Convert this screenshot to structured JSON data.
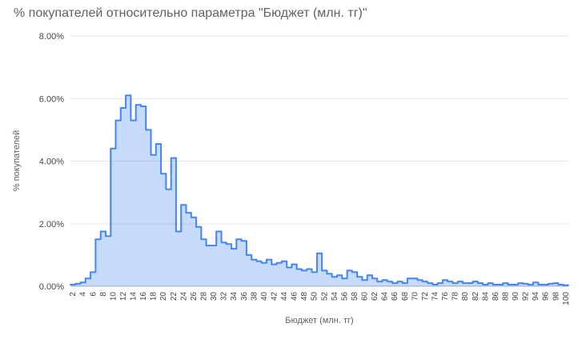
{
  "chart_data": {
    "type": "area",
    "subtype": "stepped-area-histogram",
    "title": "% покупателей относительно параметра \"Бюджет (млн. тг)\"",
    "xlabel": "Бюджет (млн. тг)",
    "ylabel": "% покупателей",
    "value_unit": "%",
    "ylim": [
      0,
      8
    ],
    "xlim": [
      1.5,
      100.5
    ],
    "grid": true,
    "legend": "none",
    "series_color": "#4285f4",
    "area_fill": "rgba(66,133,244,0.3)",
    "y_ticks": [
      {
        "value": 0,
        "label": "0.00%"
      },
      {
        "value": 2,
        "label": "2.00%"
      },
      {
        "value": 4,
        "label": "4.00%"
      },
      {
        "value": 6,
        "label": "6.00%"
      },
      {
        "value": 8,
        "label": "8.00%"
      }
    ],
    "x_ticks": [
      2,
      4,
      6,
      8,
      10,
      12,
      14,
      16,
      18,
      20,
      22,
      24,
      26,
      28,
      30,
      32,
      34,
      36,
      38,
      40,
      42,
      44,
      46,
      48,
      50,
      52,
      54,
      56,
      58,
      60,
      62,
      64,
      66,
      68,
      70,
      72,
      74,
      76,
      78,
      80,
      82,
      84,
      86,
      88,
      90,
      92,
      94,
      96,
      98,
      100
    ],
    "x": [
      2,
      3,
      4,
      5,
      6,
      7,
      8,
      9,
      10,
      11,
      12,
      13,
      14,
      15,
      16,
      17,
      18,
      19,
      20,
      21,
      22,
      23,
      24,
      25,
      26,
      27,
      28,
      29,
      30,
      31,
      32,
      33,
      34,
      35,
      36,
      37,
      38,
      39,
      40,
      41,
      42,
      43,
      44,
      45,
      46,
      47,
      48,
      49,
      50,
      51,
      52,
      53,
      54,
      55,
      56,
      57,
      58,
      59,
      60,
      61,
      62,
      63,
      64,
      65,
      66,
      67,
      68,
      69,
      70,
      71,
      72,
      73,
      74,
      75,
      76,
      77,
      78,
      79,
      80,
      81,
      82,
      83,
      84,
      85,
      86,
      87,
      88,
      89,
      90,
      91,
      92,
      93,
      94,
      95,
      96,
      97,
      98,
      99,
      100
    ],
    "values": [
      0.05,
      0.08,
      0.12,
      0.25,
      0.45,
      1.5,
      1.75,
      1.6,
      4.4,
      5.3,
      5.7,
      6.1,
      5.3,
      5.8,
      5.75,
      5.0,
      4.2,
      4.55,
      3.6,
      3.1,
      4.1,
      1.75,
      2.6,
      2.35,
      2.2,
      1.9,
      1.5,
      1.3,
      1.3,
      1.75,
      1.4,
      1.35,
      1.2,
      1.5,
      1.45,
      1.0,
      0.85,
      0.8,
      0.75,
      0.85,
      0.7,
      0.75,
      0.8,
      0.6,
      0.7,
      0.55,
      0.5,
      0.55,
      0.45,
      1.05,
      0.5,
      0.4,
      0.3,
      0.35,
      0.25,
      0.5,
      0.45,
      0.3,
      0.2,
      0.35,
      0.25,
      0.15,
      0.2,
      0.15,
      0.1,
      0.15,
      0.1,
      0.25,
      0.25,
      0.2,
      0.15,
      0.1,
      0.05,
      0.1,
      0.2,
      0.15,
      0.1,
      0.15,
      0.1,
      0.1,
      0.15,
      0.1,
      0.05,
      0.1,
      0.05,
      0.05,
      0.1,
      0.05,
      0.05,
      0.1,
      0.08,
      0.05,
      0.12,
      0.05,
      0.05,
      0.08,
      0.1,
      0.05,
      0.03
    ]
  }
}
